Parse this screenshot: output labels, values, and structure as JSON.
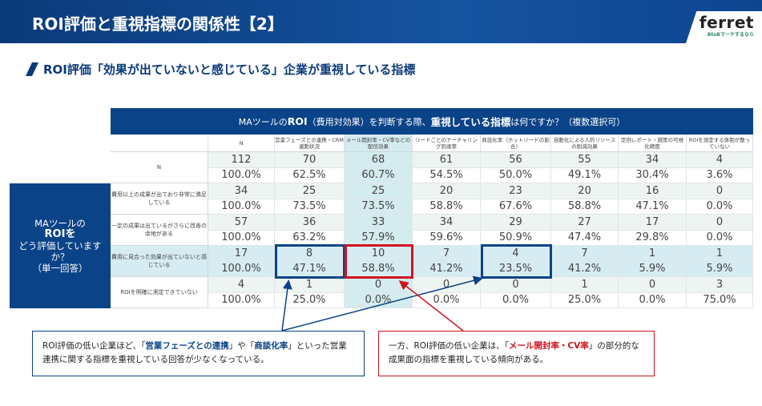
{
  "header": {
    "title": "ROI評価と重視指標の関係性【2】",
    "logo": "ferret",
    "logo_sub": "BtoBマーケするなら"
  },
  "subtitle": "ROI評価「効果が出ていないと感じている」企業が重視している指標",
  "question": {
    "pre": "MAツールの",
    "roi": "ROI",
    "mid": "（費用対効果）を判断する際、",
    "bold": "重視している指標",
    "post": "は何ですか？（複数選択可）"
  },
  "left_label": {
    "l1": "MAツールの",
    "l2": "ROIを",
    "l3": "どう評価していますか？",
    "l4": "（単一回答）"
  },
  "columns": [
    "N",
    "営業フェーズとの連携・CRM連動状況",
    "メール開封率・CV率などの配信効果",
    "リードごとのナーチャリング到達率",
    "商談化率（ホットリードの割合）",
    "自動化による人的リソースの削減効果",
    "定例レポート・施策の可視化精度",
    "ROIを測定する体制が整っていない"
  ],
  "rows": [
    {
      "label": "N",
      "nums": [
        "112",
        "70",
        "68",
        "61",
        "56",
        "55",
        "34",
        "4"
      ],
      "pcts": [
        "100.0%",
        "62.5%",
        "60.7%",
        "54.5%",
        "50.0%",
        "49.1%",
        "30.4%",
        "3.6%"
      ]
    },
    {
      "label": "費用以上の成果が出ており非常に満足している",
      "nums": [
        "34",
        "25",
        "25",
        "20",
        "23",
        "20",
        "16",
        "0"
      ],
      "pcts": [
        "100.0%",
        "73.5%",
        "73.5%",
        "58.8%",
        "67.6%",
        "58.8%",
        "47.1%",
        "0.0%"
      ]
    },
    {
      "label": "一定の成果は出ているがさらに改善の余地がある",
      "nums": [
        "57",
        "36",
        "33",
        "34",
        "29",
        "27",
        "17",
        "0"
      ],
      "pcts": [
        "100.0%",
        "63.2%",
        "57.9%",
        "59.6%",
        "50.9%",
        "47.4%",
        "29.8%",
        "0.0%"
      ]
    },
    {
      "label": "費用に見合った効果が出ていないと感じている",
      "nums": [
        "17",
        "8",
        "10",
        "7",
        "4",
        "7",
        "1",
        "1"
      ],
      "pcts": [
        "100.0%",
        "47.1%",
        "58.8%",
        "41.2%",
        "23.5%",
        "41.2%",
        "5.9%",
        "5.9%"
      ]
    },
    {
      "label": "ROIを明確に測定できていない",
      "nums": [
        "4",
        "1",
        "0",
        "0",
        "0",
        "1",
        "0",
        "3"
      ],
      "pcts": [
        "100.0%",
        "25.0%",
        "0.0%",
        "0.0%",
        "0.0%",
        "25.0%",
        "0.0%",
        "75.0%"
      ]
    }
  ],
  "callout_left": {
    "t1": "ROI評価の低い企業ほど、「",
    "b1": "営業フェーズとの連携",
    "t2": "」や「",
    "b2": "商談化率",
    "t3": "」といった営業連携に関する指標を重視している回答が少なくなっている。"
  },
  "callout_right": {
    "t1": "一方、ROI評価の低い企業は、「",
    "b1": "メール開封率・CV率",
    "t2": "」の部分的な成果面の指標を重視している傾向がある。"
  },
  "colors": {
    "navy": "#0b4388",
    "red": "#d0141e"
  }
}
